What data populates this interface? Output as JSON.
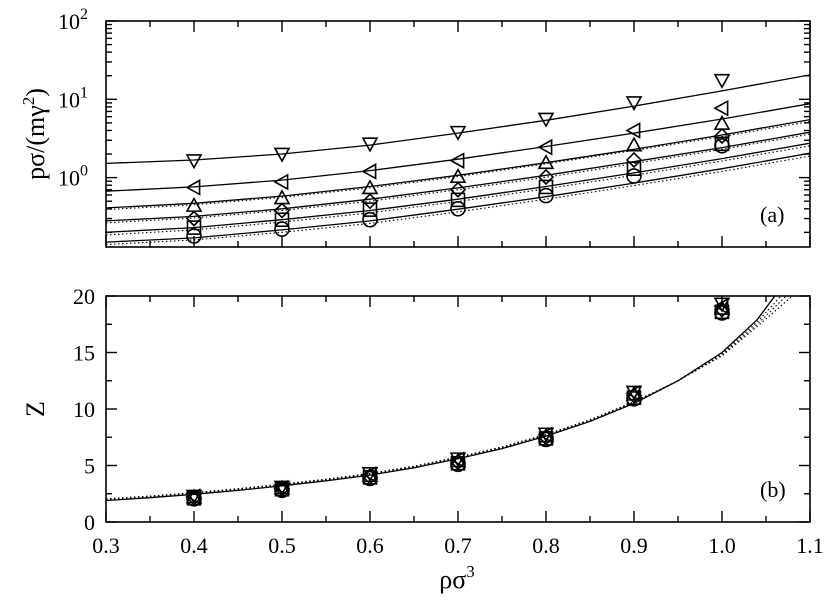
{
  "chart_data": [
    {
      "id": "a",
      "type": "scatter",
      "panel_label": "(a)",
      "ylabel": "pσ/(mγ²)",
      "ylabel_parts": {
        "base": "pσ/(mγ",
        "sup": "2",
        "tail": ")"
      },
      "xlim": [
        0.3,
        1.1
      ],
      "ylim": [
        0.13,
        100
      ],
      "yscale": "log",
      "y_ticks": [
        {
          "value": 1,
          "base": "10",
          "exp": "0"
        },
        {
          "value": 10,
          "base": "10",
          "exp": "1"
        },
        {
          "value": 100,
          "base": "10",
          "exp": "2"
        }
      ],
      "grid": false,
      "x": [
        0.4,
        0.5,
        0.6,
        0.7,
        0.8,
        0.9,
        1.0
      ],
      "series": [
        {
          "marker": "triangle-down",
          "values": [
            1.65,
            2.0,
            2.7,
            3.8,
            5.6,
            9.1,
            17.5
          ]
        },
        {
          "marker": "triangle-left",
          "values": [
            0.75,
            0.88,
            1.2,
            1.65,
            2.45,
            4.0,
            7.7
          ]
        },
        {
          "marker": "triangle-up",
          "values": [
            0.44,
            0.55,
            0.74,
            1.03,
            1.55,
            2.6,
            4.9
          ]
        },
        {
          "marker": "diamond",
          "values": [
            0.3,
            0.38,
            0.5,
            0.7,
            1.02,
            1.68,
            3.4
          ]
        },
        {
          "marker": "square",
          "values": [
            0.23,
            0.29,
            0.39,
            0.52,
            0.76,
            1.3,
            2.7
          ]
        },
        {
          "marker": "circle",
          "values": [
            0.18,
            0.22,
            0.29,
            0.4,
            0.59,
            1.05,
            2.55
          ]
        }
      ],
      "curves": [
        {
          "style": "solid",
          "x": [
            0.3,
            0.4,
            0.5,
            0.6,
            0.7,
            0.8,
            0.9,
            1.0,
            1.1
          ],
          "y": [
            1.52,
            1.68,
            2.0,
            2.6,
            3.7,
            5.4,
            8.2,
            12.8,
            20.5
          ]
        },
        {
          "style": "solid",
          "x": [
            0.3,
            0.4,
            0.5,
            0.6,
            0.7,
            0.8,
            0.9,
            1.0,
            1.1
          ],
          "y": [
            0.67,
            0.76,
            0.93,
            1.23,
            1.72,
            2.5,
            3.7,
            5.6,
            8.8
          ]
        },
        {
          "style": "solid",
          "x": [
            0.3,
            0.4,
            0.5,
            0.6,
            0.7,
            0.8,
            0.9,
            1.0,
            1.1
          ],
          "y": [
            0.41,
            0.47,
            0.58,
            0.77,
            1.07,
            1.55,
            2.3,
            3.5,
            5.5
          ]
        },
        {
          "style": "dotted",
          "x": [
            0.3,
            0.4,
            0.5,
            0.6,
            0.7,
            0.8,
            0.9,
            1.0,
            1.1
          ],
          "y": [
            0.39,
            0.45,
            0.56,
            0.74,
            1.03,
            1.5,
            2.22,
            3.35,
            5.2
          ]
        },
        {
          "style": "solid",
          "x": [
            0.3,
            0.4,
            0.5,
            0.6,
            0.7,
            0.8,
            0.9,
            1.0,
            1.1
          ],
          "y": [
            0.28,
            0.32,
            0.4,
            0.53,
            0.74,
            1.07,
            1.6,
            2.42,
            3.8
          ]
        },
        {
          "style": "dotted",
          "x": [
            0.3,
            0.4,
            0.5,
            0.6,
            0.7,
            0.8,
            0.9,
            1.0,
            1.1
          ],
          "y": [
            0.265,
            0.305,
            0.38,
            0.5,
            0.7,
            1.01,
            1.51,
            2.3,
            3.6
          ]
        },
        {
          "style": "solid",
          "x": [
            0.3,
            0.4,
            0.5,
            0.6,
            0.7,
            0.8,
            0.9,
            1.0,
            1.1
          ],
          "y": [
            0.2,
            0.23,
            0.29,
            0.38,
            0.53,
            0.77,
            1.15,
            1.75,
            2.75
          ]
        },
        {
          "style": "dotted",
          "x": [
            0.3,
            0.4,
            0.5,
            0.6,
            0.7,
            0.8,
            0.9,
            1.0,
            1.1
          ],
          "y": [
            0.185,
            0.215,
            0.27,
            0.355,
            0.495,
            0.72,
            1.07,
            1.63,
            2.55
          ]
        },
        {
          "style": "solid",
          "x": [
            0.3,
            0.4,
            0.5,
            0.6,
            0.7,
            0.8,
            0.9,
            1.0,
            1.1
          ],
          "y": [
            0.15,
            0.17,
            0.215,
            0.28,
            0.395,
            0.57,
            0.85,
            1.3,
            2.05
          ]
        },
        {
          "style": "dotted",
          "x": [
            0.3,
            0.4,
            0.5,
            0.6,
            0.7,
            0.8,
            0.9,
            1.0,
            1.1
          ],
          "y": [
            0.14,
            0.16,
            0.2,
            0.26,
            0.365,
            0.53,
            0.79,
            1.2,
            1.88
          ]
        }
      ]
    },
    {
      "id": "b",
      "type": "scatter",
      "panel_label": "(b)",
      "ylabel": "Z",
      "xlabel": "ρσ³",
      "xlabel_parts": {
        "base": "ρσ",
        "sup": "3"
      },
      "xlim": [
        0.3,
        1.1
      ],
      "ylim": [
        0,
        20
      ],
      "x_ticks": [
        "0.3",
        "0.4",
        "0.5",
        "0.6",
        "0.7",
        "0.8",
        "0.9",
        "1.0",
        "1.1"
      ],
      "y_ticks": [
        "0",
        "5",
        "10",
        "15",
        "20"
      ],
      "grid": false,
      "x": [
        0.4,
        0.5,
        0.6,
        0.7,
        0.8,
        0.9,
        1.0
      ],
      "series": [
        {
          "marker": "triangle-down",
          "values": [
            2.3,
            3.1,
            4.3,
            5.6,
            7.8,
            11.5,
            19.3
          ]
        },
        {
          "marker": "triangle-left",
          "values": [
            2.25,
            3.0,
            4.2,
            5.5,
            7.7,
            11.4,
            19.1
          ]
        },
        {
          "marker": "triangle-up",
          "values": [
            2.2,
            3.0,
            4.1,
            5.4,
            7.6,
            11.3,
            18.9
          ]
        },
        {
          "marker": "diamond",
          "values": [
            2.15,
            2.95,
            4.0,
            5.3,
            7.5,
            11.2,
            18.8
          ]
        },
        {
          "marker": "square",
          "values": [
            2.1,
            2.9,
            3.95,
            5.2,
            7.4,
            11.0,
            18.6
          ]
        },
        {
          "marker": "circle",
          "values": [
            2.05,
            2.8,
            3.85,
            5.1,
            7.3,
            10.9,
            18.5
          ]
        }
      ],
      "curves": [
        {
          "style": "solid",
          "x": [
            0.3,
            0.35,
            0.4,
            0.45,
            0.5,
            0.55,
            0.6,
            0.65,
            0.7,
            0.75,
            0.8,
            0.85,
            0.9,
            0.95,
            1.0,
            1.04,
            1.06
          ],
          "y": [
            1.9,
            2.15,
            2.45,
            2.8,
            3.2,
            3.65,
            4.15,
            4.8,
            5.6,
            6.5,
            7.6,
            8.9,
            10.5,
            12.5,
            15.0,
            17.9,
            20.0
          ]
        },
        {
          "style": "dotted",
          "x": [
            0.3,
            0.35,
            0.4,
            0.45,
            0.5,
            0.55,
            0.6,
            0.65,
            0.7,
            0.75,
            0.8,
            0.85,
            0.9,
            0.95,
            1.0,
            1.04,
            1.067
          ],
          "y": [
            1.95,
            2.2,
            2.5,
            2.85,
            3.25,
            3.7,
            4.2,
            4.85,
            5.65,
            6.55,
            7.65,
            8.95,
            10.55,
            12.5,
            14.9,
            17.7,
            20.0
          ]
        },
        {
          "style": "dotted",
          "x": [
            0.3,
            0.35,
            0.4,
            0.45,
            0.5,
            0.55,
            0.6,
            0.65,
            0.7,
            0.75,
            0.8,
            0.85,
            0.9,
            0.95,
            1.0,
            1.04,
            1.073
          ],
          "y": [
            2.0,
            2.25,
            2.55,
            2.9,
            3.3,
            3.75,
            4.25,
            4.9,
            5.7,
            6.6,
            7.7,
            9.0,
            10.6,
            12.5,
            14.8,
            17.5,
            20.0
          ]
        },
        {
          "style": "dotted",
          "x": [
            0.3,
            0.35,
            0.4,
            0.45,
            0.5,
            0.55,
            0.6,
            0.65,
            0.7,
            0.75,
            0.8,
            0.85,
            0.9,
            0.95,
            1.0,
            1.04,
            1.08
          ],
          "y": [
            2.05,
            2.3,
            2.6,
            2.95,
            3.35,
            3.8,
            4.3,
            4.95,
            5.75,
            6.65,
            7.75,
            9.05,
            10.65,
            12.5,
            14.7,
            17.3,
            20.0
          ]
        }
      ]
    }
  ]
}
